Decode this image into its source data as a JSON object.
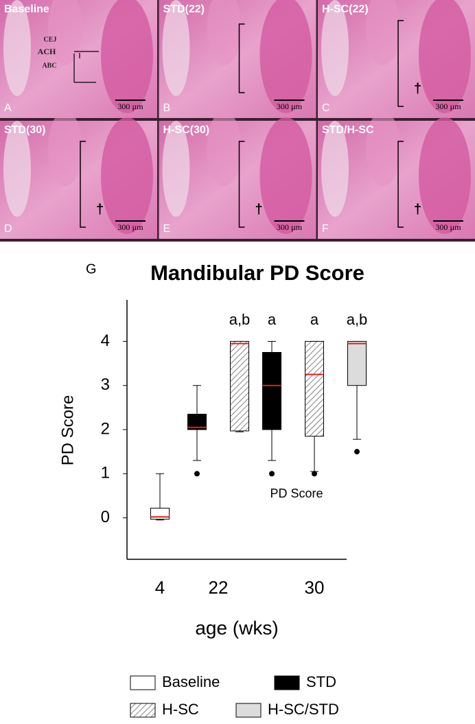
{
  "panels": [
    {
      "title": "Baseline",
      "letter": "A",
      "scale": "300 µm",
      "landmarks": [
        "CEJ",
        "ACH",
        "ABC"
      ]
    },
    {
      "title": "STD(22)",
      "letter": "B",
      "scale": "300 µm"
    },
    {
      "title": "H-SC(22)",
      "letter": "C",
      "scale": "300 µm",
      "mark": "†"
    },
    {
      "title": "STD(30)",
      "letter": "D",
      "scale": "300 µm",
      "mark": "†"
    },
    {
      "title": "H-SC(30)",
      "letter": "E",
      "scale": "300 µm",
      "mark": "†"
    },
    {
      "title": "STD/H-SC",
      "letter": "F",
      "scale": "300 µm",
      "mark": "†"
    }
  ],
  "chart_data": {
    "type": "box",
    "panel_letter": "G",
    "title": "Mandibular PD Score",
    "y_label": "PD Score",
    "x_label": "age (wks)",
    "note": "PD Score",
    "categories": [
      "4",
      "22",
      "30"
    ],
    "ylim": [
      -0.94,
      4.94
    ],
    "yticks": [
      0,
      1,
      2,
      3,
      4
    ],
    "median_color": "#e02020",
    "series": [
      {
        "name": "Baseline",
        "color": "#ffffff",
        "boxes": [
          {
            "min": -0.05,
            "q1": -0.03,
            "median": 0.02,
            "q3": 0.22,
            "max": 1.0,
            "outliers": []
          },
          null,
          null
        ],
        "labels": [
          null,
          null,
          null
        ]
      },
      {
        "name": "STD",
        "color": "#000000",
        "boxes": [
          null,
          {
            "min": 1.3,
            "q1": 2.0,
            "median": 2.05,
            "q3": 2.35,
            "max": 3.0,
            "outliers": [
              1.0
            ]
          },
          {
            "min": 1.3,
            "q1": 2.0,
            "median": 3.0,
            "q3": 3.75,
            "max": 4.0,
            "outliers": [
              1.0
            ]
          }
        ],
        "labels": [
          null,
          null,
          "a"
        ]
      },
      {
        "name": "H-SC",
        "color": "#ffffff",
        "hatch": true,
        "boxes": [
          null,
          {
            "min": 1.95,
            "q1": 1.97,
            "median": 3.95,
            "q3": 4.0,
            "max": 4.0,
            "outliers": []
          },
          {
            "min": 1.05,
            "q1": 1.85,
            "median": 3.25,
            "q3": 4.0,
            "max": 4.0,
            "outliers": [
              1.0
            ]
          }
        ],
        "labels": [
          null,
          "a,b",
          "a"
        ]
      },
      {
        "name": "H-SC/STD",
        "color": "#dcdcdc",
        "boxes": [
          null,
          null,
          {
            "min": 1.78,
            "q1": 3.0,
            "median": 3.95,
            "q3": 4.0,
            "max": 4.0,
            "outliers": [
              1.5
            ]
          }
        ],
        "labels": [
          null,
          null,
          "a,b"
        ]
      }
    ]
  }
}
